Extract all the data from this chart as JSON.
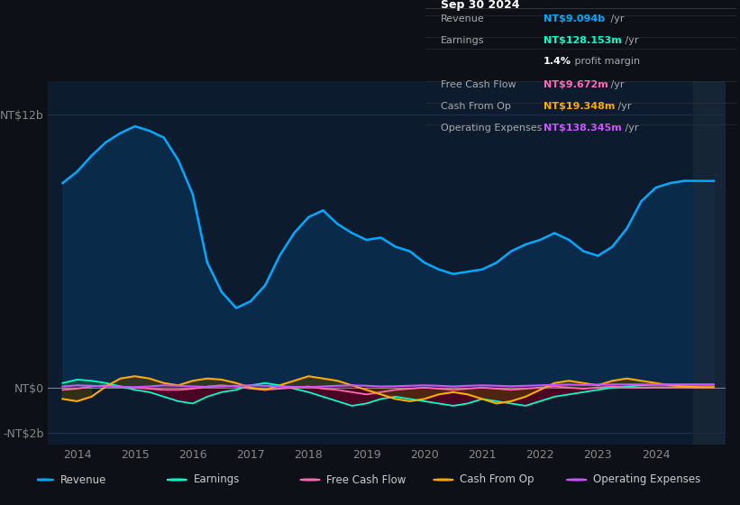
{
  "bg_color": "#0d1117",
  "plot_bg_color": "#0d1b2e",
  "grid_color": "#1e3050",
  "title_box_bg": "#0a0a0a",
  "ylabel_top": "NT$12b",
  "ylabel_zero": "NT$0",
  "ylabel_neg": "-NT$2b",
  "ylim": [
    -2500000000.0,
    13500000000.0
  ],
  "xlim": [
    2013.5,
    2025.2
  ],
  "yticks": [
    -2000000000.0,
    0,
    12000000000.0
  ],
  "ytick_labels": [
    "-NT$2b",
    "NT$0",
    "NT$12b"
  ],
  "xtick_years": [
    2014,
    2015,
    2016,
    2017,
    2018,
    2019,
    2020,
    2021,
    2022,
    2023,
    2024
  ],
  "revenue_color": "#00aaff",
  "earnings_color": "#00ffcc",
  "fcf_color": "#ff69b4",
  "cashfromop_color": "#ffaa00",
  "opex_color": "#cc55ff",
  "revenue_fill_color": "#0a2a4a",
  "info_box": {
    "date": "Sep 30 2024",
    "revenue_val": "NT$9.094b",
    "revenue_color": "#00aaff",
    "earnings_val": "NT$128.153m",
    "earnings_color": "#00ffcc",
    "profit_margin": "1.4%",
    "fcf_val": "NT$9.672m",
    "fcf_color": "#ff69b4",
    "cashfromop_val": "NT$19.348m",
    "cashfromop_color": "#ffaa00",
    "opex_val": "NT$138.345m",
    "opex_color": "#cc55ff"
  },
  "revenue_x": [
    2013.75,
    2014.0,
    2014.25,
    2014.5,
    2014.75,
    2015.0,
    2015.25,
    2015.5,
    2015.75,
    2016.0,
    2016.25,
    2016.5,
    2016.75,
    2017.0,
    2017.25,
    2017.5,
    2017.75,
    2018.0,
    2018.25,
    2018.5,
    2018.75,
    2019.0,
    2019.25,
    2019.5,
    2019.75,
    2020.0,
    2020.25,
    2020.5,
    2020.75,
    2021.0,
    2021.25,
    2021.5,
    2021.75,
    2022.0,
    2022.25,
    2022.5,
    2022.75,
    2023.0,
    2023.25,
    2023.5,
    2023.75,
    2024.0,
    2024.25,
    2024.5,
    2024.75,
    2025.0
  ],
  "revenue_y": [
    9000000000.0,
    9500000000.0,
    10200000000.0,
    10800000000.0,
    11200000000.0,
    11500000000.0,
    11300000000.0,
    11000000000.0,
    10000000000.0,
    8500000000.0,
    5500000000.0,
    4200000000.0,
    3500000000.0,
    3800000000.0,
    4500000000.0,
    5800000000.0,
    6800000000.0,
    7500000000.0,
    7800000000.0,
    7200000000.0,
    6800000000.0,
    6500000000.0,
    6600000000.0,
    6200000000.0,
    6000000000.0,
    5500000000.0,
    5200000000.0,
    5000000000.0,
    5100000000.0,
    5200000000.0,
    5500000000.0,
    6000000000.0,
    6300000000.0,
    6500000000.0,
    6800000000.0,
    6500000000.0,
    6000000000.0,
    5800000000.0,
    6200000000.0,
    7000000000.0,
    8200000000.0,
    8800000000.0,
    9000000000.0,
    9100000000.0,
    9094000000.0,
    9094000000.0
  ],
  "earnings_x": [
    2013.75,
    2014.0,
    2014.25,
    2014.5,
    2014.75,
    2015.0,
    2015.25,
    2015.5,
    2015.75,
    2016.0,
    2016.25,
    2016.5,
    2016.75,
    2017.0,
    2017.25,
    2017.5,
    2017.75,
    2018.0,
    2018.25,
    2018.5,
    2018.75,
    2019.0,
    2019.25,
    2019.5,
    2019.75,
    2020.0,
    2020.25,
    2020.5,
    2020.75,
    2021.0,
    2021.25,
    2021.5,
    2021.75,
    2022.0,
    2022.25,
    2022.5,
    2022.75,
    2023.0,
    2023.25,
    2023.5,
    2023.75,
    2024.0,
    2024.25,
    2024.5,
    2024.75,
    2025.0
  ],
  "earnings_y": [
    200000000.0,
    350000000.0,
    300000000.0,
    200000000.0,
    50000000.0,
    -100000000.0,
    -200000000.0,
    -400000000.0,
    -600000000.0,
    -700000000.0,
    -400000000.0,
    -200000000.0,
    -100000000.0,
    100000000.0,
    200000000.0,
    100000000.0,
    -50000000.0,
    -200000000.0,
    -400000000.0,
    -600000000.0,
    -800000000.0,
    -700000000.0,
    -500000000.0,
    -400000000.0,
    -500000000.0,
    -600000000.0,
    -700000000.0,
    -800000000.0,
    -700000000.0,
    -500000000.0,
    -600000000.0,
    -700000000.0,
    -800000000.0,
    -600000000.0,
    -400000000.0,
    -300000000.0,
    -200000000.0,
    -100000000.0,
    0,
    50000000.0,
    100000000.0,
    128000000.0,
    128000000.0,
    128000000.0,
    128000000.0,
    128000000.0
  ],
  "fcf_x": [
    2013.75,
    2014.0,
    2014.25,
    2014.5,
    2014.75,
    2015.0,
    2015.25,
    2015.5,
    2015.75,
    2016.0,
    2016.25,
    2016.5,
    2016.75,
    2017.0,
    2017.25,
    2017.5,
    2017.75,
    2018.0,
    2018.25,
    2018.5,
    2018.75,
    2019.0,
    2019.25,
    2019.5,
    2019.75,
    2020.0,
    2020.25,
    2020.5,
    2020.75,
    2021.0,
    2021.25,
    2021.5,
    2021.75,
    2022.0,
    2022.25,
    2022.5,
    2022.75,
    2023.0,
    2023.25,
    2023.5,
    2023.75,
    2024.0,
    2024.25,
    2024.5,
    2024.75,
    2025.0
  ],
  "fcf_y": [
    -100000000.0,
    -50000000.0,
    50000000.0,
    100000000.0,
    50000000.0,
    0,
    -50000000.0,
    -100000000.0,
    -100000000.0,
    -50000000.0,
    50000000.0,
    100000000.0,
    50000000.0,
    -50000000.0,
    -100000000.0,
    -50000000.0,
    0,
    50000000.0,
    -50000000.0,
    -100000000.0,
    -200000000.0,
    -300000000.0,
    -200000000.0,
    -100000000.0,
    -50000000.0,
    0,
    -50000000.0,
    -100000000.0,
    -50000000.0,
    0,
    -50000000.0,
    -100000000.0,
    -50000000.0,
    0,
    50000000.0,
    0,
    -50000000.0,
    0,
    50000000.0,
    0,
    0,
    9672000.0,
    9672000.0,
    9672000.0,
    9672000.0,
    9672000.0
  ],
  "cashfromop_x": [
    2013.75,
    2014.0,
    2014.25,
    2014.5,
    2014.75,
    2015.0,
    2015.25,
    2015.5,
    2015.75,
    2016.0,
    2016.25,
    2016.5,
    2016.75,
    2017.0,
    2017.25,
    2017.5,
    2017.75,
    2018.0,
    2018.25,
    2018.5,
    2018.75,
    2019.0,
    2019.25,
    2019.5,
    2019.75,
    2020.0,
    2020.25,
    2020.5,
    2020.75,
    2021.0,
    2021.25,
    2021.5,
    2021.75,
    2022.0,
    2022.25,
    2022.5,
    2022.75,
    2023.0,
    2023.25,
    2023.5,
    2023.75,
    2024.0,
    2024.25,
    2024.5,
    2024.75,
    2025.0
  ],
  "cashfromop_y": [
    -500000000.0,
    -600000000.0,
    -400000000.0,
    50000000.0,
    400000000.0,
    500000000.0,
    400000000.0,
    200000000.0,
    100000000.0,
    300000000.0,
    400000000.0,
    350000000.0,
    200000000.0,
    0,
    -100000000.0,
    100000000.0,
    300000000.0,
    500000000.0,
    400000000.0,
    300000000.0,
    100000000.0,
    -100000000.0,
    -300000000.0,
    -500000000.0,
    -600000000.0,
    -500000000.0,
    -300000000.0,
    -200000000.0,
    -300000000.0,
    -500000000.0,
    -700000000.0,
    -600000000.0,
    -400000000.0,
    -100000000.0,
    200000000.0,
    300000000.0,
    200000000.0,
    100000000.0,
    300000000.0,
    400000000.0,
    300000000.0,
    200000000.0,
    100000000.0,
    50000000.0,
    19348000.0,
    19348000.0
  ],
  "opex_x": [
    2013.75,
    2014.0,
    2014.25,
    2014.5,
    2014.75,
    2015.0,
    2015.25,
    2015.5,
    2015.75,
    2016.0,
    2016.25,
    2016.5,
    2016.75,
    2017.0,
    2017.25,
    2017.5,
    2017.75,
    2018.0,
    2018.25,
    2018.5,
    2018.75,
    2019.0,
    2019.25,
    2019.5,
    2019.75,
    2020.0,
    2020.25,
    2020.5,
    2020.75,
    2021.0,
    2021.25,
    2021.5,
    2021.75,
    2022.0,
    2022.25,
    2022.5,
    2022.75,
    2023.0,
    2023.25,
    2023.5,
    2023.75,
    2024.0,
    2024.25,
    2024.5,
    2024.75,
    2025.0
  ],
  "opex_y": [
    50000000.0,
    100000000.0,
    80000000.0,
    50000000.0,
    30000000.0,
    20000000.0,
    50000000.0,
    100000000.0,
    80000000.0,
    50000000.0,
    30000000.0,
    50000000.0,
    80000000.0,
    100000000.0,
    80000000.0,
    50000000.0,
    30000000.0,
    20000000.0,
    50000000.0,
    80000000.0,
    100000000.0,
    80000000.0,
    50000000.0,
    60000000.0,
    80000000.0,
    100000000.0,
    80000000.0,
    50000000.0,
    80000000.0,
    100000000.0,
    80000000.0,
    60000000.0,
    80000000.0,
    100000000.0,
    120000000.0,
    130000000.0,
    120000000.0,
    130000000.0,
    135000000.0,
    138000000.0,
    138000000.0,
    138345000.0,
    138345000.0,
    138345000.0,
    138345000.0,
    138345000.0
  ],
  "legend_items": [
    {
      "label": "Revenue",
      "color": "#00aaff"
    },
    {
      "label": "Earnings",
      "color": "#00ffcc"
    },
    {
      "label": "Free Cash Flow",
      "color": "#ff69b4"
    },
    {
      "label": "Cash From Op",
      "color": "#ffaa00"
    },
    {
      "label": "Operating Expenses",
      "color": "#cc55ff"
    }
  ]
}
